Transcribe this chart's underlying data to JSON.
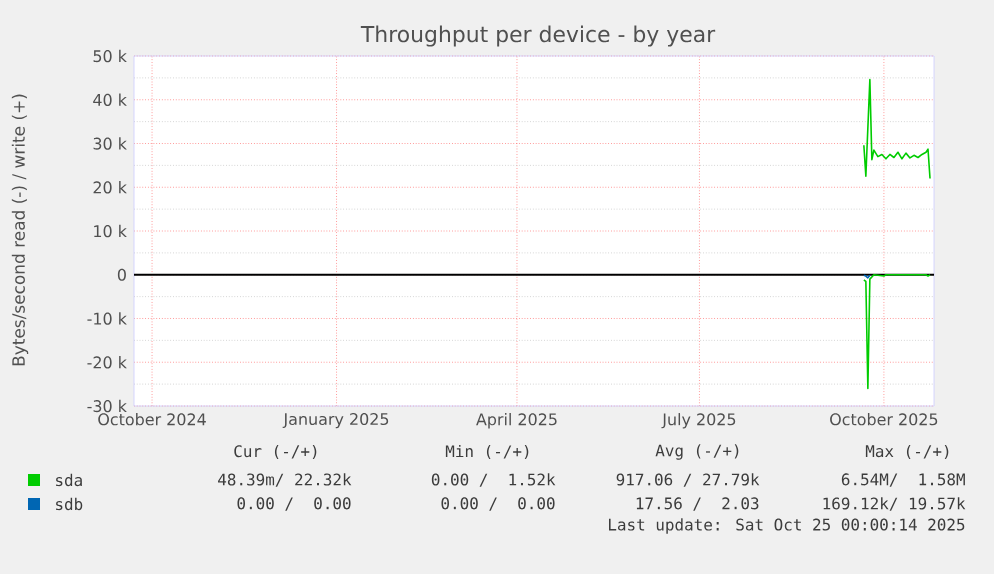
{
  "chart_data": {
    "type": "line",
    "title": "Throughput per device - by year",
    "ylabel": "Bytes/second read (-) / write (+)",
    "xlim": [
      "2024-09-22",
      "2025-10-26"
    ],
    "xticks": [
      {
        "value": "2024-10-01",
        "label": "October 2024"
      },
      {
        "value": "2025-01-01",
        "label": "January 2025"
      },
      {
        "value": "2025-04-01",
        "label": "April 2025"
      },
      {
        "value": "2025-07-01",
        "label": "July 2025"
      },
      {
        "value": "2025-10-01",
        "label": "October 2025"
      }
    ],
    "ylim": [
      -30000,
      50000
    ],
    "yticks": [
      {
        "value": -30000,
        "label": "-30 k"
      },
      {
        "value": -20000,
        "label": "-20 k"
      },
      {
        "value": -10000,
        "label": "-10 k"
      },
      0,
      {
        "value": 10000,
        "label": "10 k"
      },
      {
        "value": 20000,
        "label": "20 k"
      },
      {
        "value": 30000,
        "label": "30 k"
      },
      {
        "value": 40000,
        "label": "40 k"
      },
      {
        "value": 50000,
        "label": "50 k"
      }
    ],
    "grid": true,
    "legend": "bottom",
    "ref_lines": [
      {
        "axis": "y",
        "value": 0,
        "color": "#000000"
      }
    ],
    "series": [
      {
        "name": "sda",
        "color": "#00cc00",
        "x": [
          "2025-09-21",
          "2025-09-22",
          "2025-09-24",
          "2025-09-25",
          "2025-09-26",
          "2025-09-28",
          "2025-09-30",
          "2025-10-02",
          "2025-10-04",
          "2025-10-06",
          "2025-10-08",
          "2025-10-10",
          "2025-10-12",
          "2025-10-14",
          "2025-10-16",
          "2025-10-18",
          "2025-10-20",
          "2025-10-22",
          "2025-10-23",
          "2025-10-24"
        ],
        "values": [
          29600,
          22500,
          44600,
          26300,
          28500,
          27000,
          27500,
          26500,
          27500,
          26800,
          28000,
          26500,
          27800,
          26700,
          27300,
          26800,
          27500,
          28000,
          28700,
          22000
        ]
      },
      {
        "color": "#00cc00",
        "x": [
          "2025-09-21",
          "2025-09-22",
          "2025-09-23",
          "2025-09-24",
          "2025-09-25",
          "2025-09-26",
          "2025-10-01",
          "2025-10-02",
          "2025-10-22",
          "2025-10-23",
          "2025-10-24"
        ],
        "values": [
          -1200,
          -1500,
          -26000,
          -1000,
          -500,
          0,
          -300,
          0,
          0,
          -300,
          0
        ]
      },
      {
        "name": "sdb",
        "color": "#0066b3",
        "x": [
          "2025-09-21",
          "2025-09-22",
          "2025-09-23",
          "2025-09-24"
        ],
        "values": [
          -100,
          -300,
          -700,
          -100
        ]
      }
    ],
    "annotations": [
      "Cur (-/+)",
      "Min (-/+)",
      "Avg (-/+)",
      "Max (-/+)",
      "48.39m/ 22.32k",
      "0.00 /  1.52k",
      "917.06 / 27.79k",
      "6.54M/  1.58M",
      "0.00 /  0.00",
      "0.00 /  0.00",
      "17.56 /  2.03",
      "169.12k/ 19.57k",
      "Last update: Sat Oct 25 00:00:14 2025"
    ]
  }
}
